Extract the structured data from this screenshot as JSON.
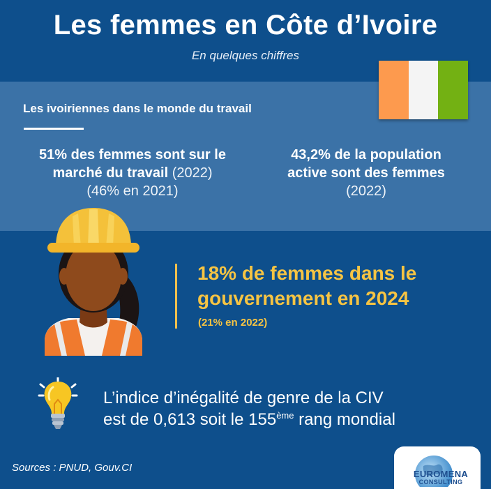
{
  "header": {
    "title": "Les femmes en Côte d’Ivoire",
    "subtitle": "En quelques chiffres"
  },
  "flag": {
    "colors": [
      "#fd9a4e",
      "#f4f4f4",
      "#73b113"
    ]
  },
  "work_section": {
    "title": "Les ivoiriennes dans le monde du travail",
    "stat_left": {
      "line1": "51% des femmes sont sur le",
      "line2": "marché du travail",
      "year": "(2022)",
      "previous": "(46% en 2021)"
    },
    "stat_right": {
      "line1": "43,2% de la population",
      "line2": "active sont des femmes",
      "year": "(2022)"
    }
  },
  "government": {
    "line1": "18% de femmes dans le",
    "line2": "gouvernement en 2024",
    "previous": "(21% en 2022)"
  },
  "inequality": {
    "line1": "L’indice d’inégalité de genre de la CIV",
    "line2_prefix": "est de 0,613 soit le 155",
    "superscript": "ème",
    "line2_suffix": " rang mondial"
  },
  "footer": {
    "sources": "Sources : PNUD, Gouv.CI",
    "logo_line1": "EUROMENA",
    "logo_line2": "CONSULTING"
  },
  "icons": {
    "worker": "female-construction-worker-icon",
    "bulb": "light-bulb-icon",
    "logo": "globe-logo-icon"
  }
}
